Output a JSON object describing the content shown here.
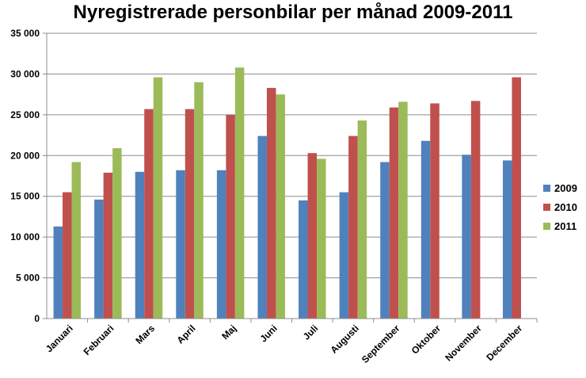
{
  "chart_data": {
    "type": "bar",
    "title": "Nyregistrerade personbilar per månad 2009-2011",
    "xlabel": "",
    "ylabel": "",
    "ylim": [
      0,
      35000
    ],
    "yticks": [
      0,
      5000,
      10000,
      15000,
      20000,
      25000,
      30000,
      35000
    ],
    "ytick_labels": [
      "0",
      "5 000",
      "10 000",
      "15 000",
      "20 000",
      "25 000",
      "30 000",
      "35 000"
    ],
    "grid": "horizontal",
    "legend_position": "right",
    "categories": [
      "Januari",
      "Februari",
      "Mars",
      "April",
      "Maj",
      "Juni",
      "Juli",
      "Augusti",
      "September",
      "Oktober",
      "November",
      "December"
    ],
    "series": [
      {
        "name": "2009",
        "color": "#4f81bd",
        "values": [
          11300,
          14600,
          18000,
          18200,
          18200,
          22400,
          14500,
          15500,
          19200,
          21800,
          20100,
          19400
        ]
      },
      {
        "name": "2010",
        "color": "#c0504d",
        "values": [
          15500,
          17900,
          25700,
          25700,
          25000,
          28300,
          20300,
          22400,
          25900,
          26400,
          26700,
          29600
        ]
      },
      {
        "name": "2011",
        "color": "#9bbb59",
        "values": [
          19200,
          20900,
          29600,
          29000,
          30800,
          27500,
          19600,
          24300,
          26600,
          null,
          null,
          null
        ]
      }
    ]
  }
}
